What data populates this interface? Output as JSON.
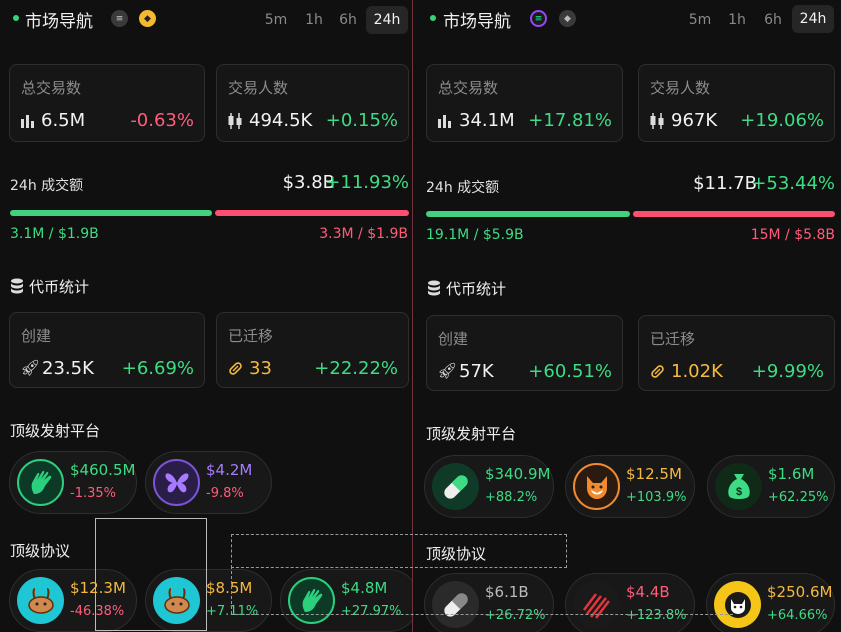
{
  "left": {
    "header": {
      "title": "市场导航",
      "timeframes": [
        "5m",
        "1h",
        "6h",
        "24h"
      ],
      "active": "24h"
    },
    "stats": {
      "tx_label": "总交易数",
      "tx_value": "6.5M",
      "tx_change": "-0.63%",
      "traders_label": "交易人数",
      "traders_value": "494.5K",
      "traders_change": "+0.15%"
    },
    "volume": {
      "label": "24h 成交额",
      "total": "$3.8B",
      "change": "+11.93%",
      "buy_split": 0.5,
      "buy": "3.1M / $1.9B",
      "sell": "3.3M / $1.9B"
    },
    "tokens": {
      "title": "代币统计",
      "created_label": "创建",
      "created_value": "23.5K",
      "created_change": "+6.69%",
      "migrated_label": "已迁移",
      "migrated_value": "33",
      "migrated_change": "+22.22%"
    },
    "launchpads": {
      "title": "顶级发射平台",
      "items": [
        {
          "value": "$460.5M",
          "change": "-1.35%",
          "icon": "hand-icon"
        },
        {
          "value": "$4.2M",
          "change": "-9.8%",
          "icon": "butterfly-icon"
        }
      ]
    },
    "protocols": {
      "title": "顶级协议",
      "items": [
        {
          "value": "$12.3M",
          "change": "-46.38%",
          "icon": "bunny-icon"
        },
        {
          "value": "$8.5M",
          "change": "+7.11%",
          "icon": "bunny-icon"
        },
        {
          "value": "$4.8M",
          "change": "+27.97%",
          "icon": "hand-icon"
        }
      ]
    }
  },
  "right": {
    "header": {
      "title": "市场导航",
      "timeframes": [
        "5m",
        "1h",
        "6h",
        "24h"
      ],
      "active": "24h"
    },
    "stats": {
      "tx_label": "总交易数",
      "tx_value": "34.1M",
      "tx_change": "+17.81%",
      "traders_label": "交易人数",
      "traders_value": "967K",
      "traders_change": "+19.06%"
    },
    "volume": {
      "label": "24h 成交额",
      "total": "$11.7B",
      "change": "+53.44%",
      "buy_split": 0.5,
      "buy": "19.1M / $5.9B",
      "sell": "15M / $5.8B"
    },
    "tokens": {
      "title": "代币统计",
      "created_label": "创建",
      "created_value": "57K",
      "created_change": "+60.51%",
      "migrated_label": "已迁移",
      "migrated_value": "1.02K",
      "migrated_change": "+9.99%"
    },
    "launchpads": {
      "title": "顶级发射平台",
      "items": [
        {
          "value": "$340.9M",
          "change": "+88.2%",
          "icon": "pill-icon"
        },
        {
          "value": "$12.5M",
          "change": "+103.9%",
          "icon": "fox-icon"
        },
        {
          "value": "$1.6M",
          "change": "+62.25%",
          "icon": "money-bag-icon"
        }
      ]
    },
    "protocols": {
      "title": "顶级协议",
      "items": [
        {
          "value": "$6.1B",
          "change": "+26.72%",
          "icon": "pill-icon"
        },
        {
          "value": "$4.4B",
          "change": "+123.8%",
          "icon": "stripes-icon"
        },
        {
          "value": "$250.6M",
          "change": "+64.66%",
          "icon": "cat-coin-icon"
        }
      ]
    }
  },
  "colors": {
    "up": "#3ddc84",
    "down": "#ff5c7a",
    "migrated": "#f5b942",
    "background": "#101010"
  }
}
